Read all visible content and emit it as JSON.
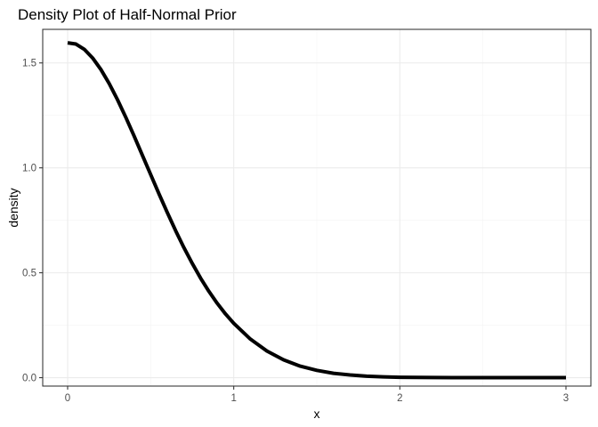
{
  "chart_data": {
    "type": "line",
    "title": "Density Plot of Half-Normal Prior",
    "xlabel": "x",
    "ylabel": "density",
    "xlim": [
      -0.15,
      3.15
    ],
    "ylim": [
      -0.04,
      1.66
    ],
    "x_ticks": [
      0,
      1,
      2,
      3
    ],
    "x_tick_labels": [
      "0",
      "1",
      "2",
      "3"
    ],
    "y_ticks": [
      0.0,
      0.5,
      1.0,
      1.5
    ],
    "y_tick_labels": [
      "0.0",
      "0.5",
      "1.0",
      "1.5"
    ],
    "grid": true,
    "line_color": "#000000",
    "series": [
      {
        "x": [
          0.0,
          0.05,
          0.1,
          0.15,
          0.2,
          0.25,
          0.3,
          0.35,
          0.4,
          0.45,
          0.5,
          0.55,
          0.6,
          0.65,
          0.7,
          0.75,
          0.8,
          0.85,
          0.9,
          0.95,
          1.0,
          1.1,
          1.2,
          1.3,
          1.4,
          1.5,
          1.6,
          1.7,
          1.8,
          1.9,
          2.0,
          2.2,
          2.4,
          2.6,
          2.8,
          3.0
        ],
        "y": [
          1.596,
          1.59,
          1.565,
          1.524,
          1.469,
          1.402,
          1.325,
          1.241,
          1.152,
          1.06,
          0.968,
          0.876,
          0.787,
          0.701,
          0.62,
          0.545,
          0.475,
          0.412,
          0.355,
          0.304,
          0.259,
          0.184,
          0.127,
          0.085,
          0.055,
          0.035,
          0.021,
          0.013,
          0.007,
          0.004,
          0.002,
          0.001,
          0.0,
          0.0,
          0.0,
          0.0
        ]
      }
    ]
  }
}
